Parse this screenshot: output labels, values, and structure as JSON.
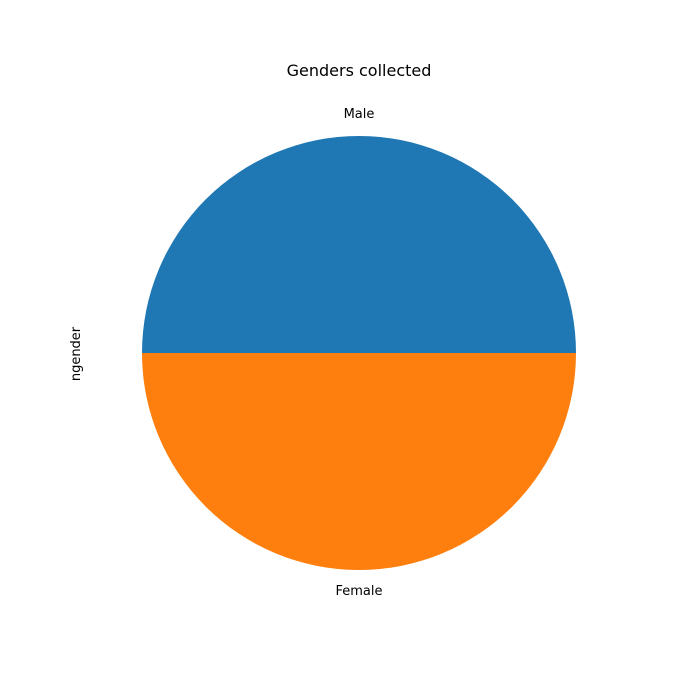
{
  "chart_data": {
    "type": "pie",
    "title": "Genders collected",
    "ylabel": "ngender",
    "categories": [
      "Male",
      "Female"
    ],
    "values": [
      50,
      50
    ],
    "colors": [
      "#1f77b4",
      "#ff7f0e"
    ],
    "start_angle_deg": 0,
    "direction": "counterclockwise",
    "legend": "none"
  }
}
